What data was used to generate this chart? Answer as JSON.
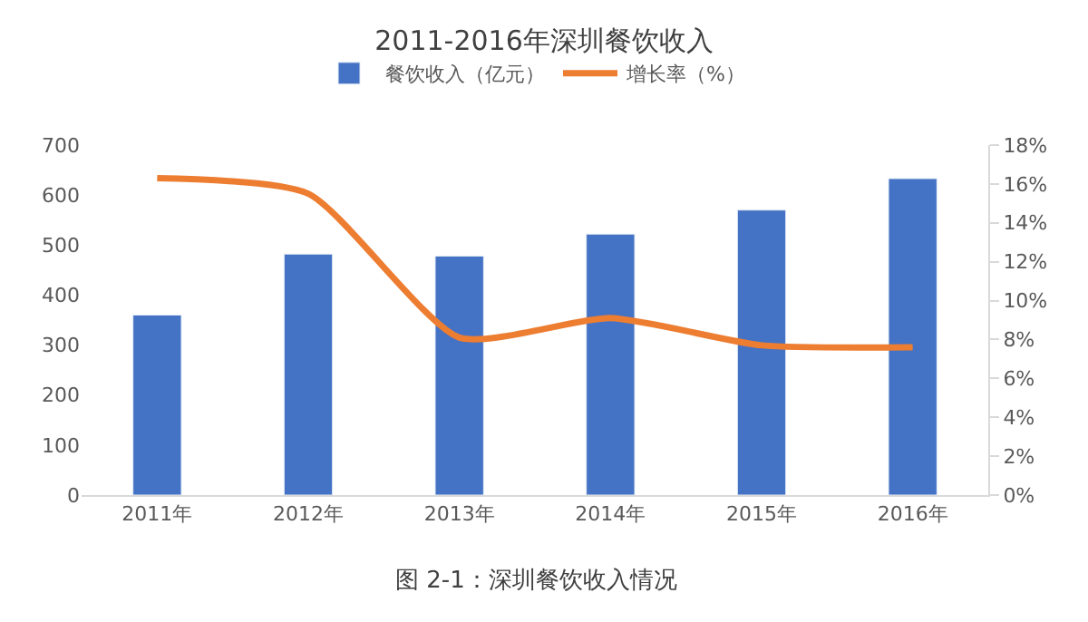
{
  "chart_data": {
    "type": "bar",
    "title": "2011-2016年深圳餐饮收入",
    "categories": [
      "2011年",
      "2012年",
      "2013年",
      "2014年",
      "2015年",
      "2016年"
    ],
    "series": [
      {
        "name": "餐饮收入（亿元）",
        "color": "#4472c4",
        "values": [
          360,
          482,
          478,
          522,
          570,
          633
        ]
      },
      {
        "name": "增长率（%）",
        "type": "line",
        "axis": "y2",
        "color": "#ed7d31",
        "values": [
          16.3,
          15.5,
          8.1,
          9.1,
          7.7,
          7.6
        ]
      }
    ],
    "ylim": [
      0,
      700
    ],
    "yticks": [
      0,
      100,
      200,
      300,
      400,
      500,
      600,
      700
    ],
    "y2lim": [
      0,
      18
    ],
    "y2ticks": [
      {
        "value": 0,
        "label": "0%"
      },
      {
        "value": 2,
        "label": "2%"
      },
      {
        "value": 4,
        "label": "4%"
      },
      {
        "value": 6,
        "label": "6%"
      },
      {
        "value": 8,
        "label": "8%"
      },
      {
        "value": 10,
        "label": "10%"
      },
      {
        "value": 12,
        "label": "12%"
      },
      {
        "value": 14,
        "label": "14%"
      },
      {
        "value": 16,
        "label": "16%"
      },
      {
        "value": 18,
        "label": "18%"
      }
    ],
    "legend": "top",
    "marker": "none",
    "annotations": [
      "图 2-1：深圳餐饮收入情况"
    ]
  }
}
